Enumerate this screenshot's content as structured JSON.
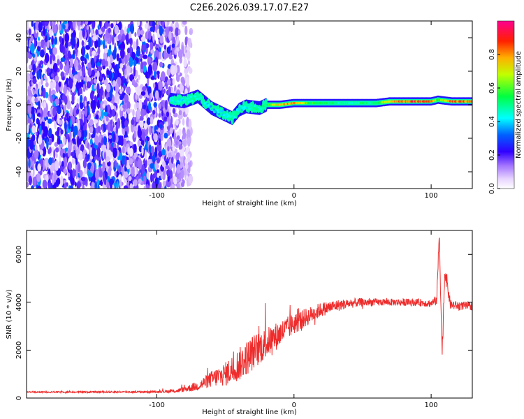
{
  "title": "C2E6.2026.039.17.07.E27",
  "chart_data": [
    {
      "type": "heatmap",
      "xlabel": "Height of straight line (km)",
      "ylabel": "Frequency (Hz)",
      "xlim": [
        -195,
        130
      ],
      "ylim": [
        -50,
        50
      ],
      "x_ticks": [
        -100,
        0,
        100
      ],
      "x_tick_labels": [
        "-100",
        "0",
        "100"
      ],
      "y_ticks": [
        -40,
        -20,
        0,
        20,
        40
      ],
      "y_tick_labels": [
        "-40",
        "-20",
        "0",
        "20",
        "40"
      ],
      "colorbar": {
        "label": "Normalized spectral amplitude",
        "range": [
          0,
          1
        ],
        "ticks": [
          0.0,
          0.2,
          0.4,
          0.6,
          0.8
        ],
        "tick_labels": [
          "0.0",
          "0.2",
          "0.4",
          "0.6",
          "0.8"
        ],
        "colormap": [
          "#ffffff",
          "#e6d2ff",
          "#7a2cf0",
          "#0000ff",
          "#00ffff",
          "#00ff00",
          "#ffff00",
          "#ff8000",
          "#ff0000",
          "#ff00a0"
        ]
      },
      "noise_region": {
        "x_from": -195,
        "x_to": -75,
        "amplitude": 0.25
      },
      "ridge": [
        {
          "x": -90,
          "freq": 3,
          "amp": 0.45
        },
        {
          "x": -80,
          "freq": 2,
          "amp": 0.45
        },
        {
          "x": -70,
          "freq": 5,
          "amp": 0.5
        },
        {
          "x": -60,
          "freq": -2,
          "amp": 0.4
        },
        {
          "x": -50,
          "freq": -6,
          "amp": 0.45
        },
        {
          "x": -45,
          "freq": -8,
          "amp": 0.5
        },
        {
          "x": -40,
          "freq": -3,
          "amp": 0.45
        },
        {
          "x": -35,
          "freq": -1,
          "amp": 0.45
        },
        {
          "x": -25,
          "freq": -2,
          "amp": 0.5
        },
        {
          "x": -20,
          "freq": 0,
          "amp": 0.55
        },
        {
          "x": -10,
          "freq": 0,
          "amp": 0.8
        },
        {
          "x": 0,
          "freq": 1,
          "amp": 0.85
        },
        {
          "x": 10,
          "freq": 1,
          "amp": 0.6
        },
        {
          "x": 20,
          "freq": 1,
          "amp": 0.55
        },
        {
          "x": 40,
          "freq": 1,
          "amp": 0.5
        },
        {
          "x": 60,
          "freq": 1,
          "amp": 0.55
        },
        {
          "x": 70,
          "freq": 2,
          "amp": 0.8
        },
        {
          "x": 90,
          "freq": 2,
          "amp": 0.9
        },
        {
          "x": 100,
          "freq": 2,
          "amp": 0.85
        },
        {
          "x": 105,
          "freq": 3,
          "amp": 0.6
        },
        {
          "x": 115,
          "freq": 2,
          "amp": 0.85
        },
        {
          "x": 130,
          "freq": 2,
          "amp": 0.85
        }
      ]
    },
    {
      "type": "line",
      "xlabel": "Height of straight line (km)",
      "ylabel": "SNR (10 * v/v)",
      "xlim": [
        -195,
        130
      ],
      "ylim": [
        0,
        7000
      ],
      "x_ticks": [
        -100,
        0,
        100
      ],
      "x_tick_labels": [
        "-100",
        "0",
        "100"
      ],
      "y_ticks": [
        0,
        2000,
        4000,
        6000
      ],
      "y_tick_labels": [
        "0",
        "2000",
        "4000",
        "6000"
      ],
      "color": "#ee2c2c",
      "x": [
        -195,
        -150,
        -100,
        -85,
        -70,
        -60,
        -50,
        -40,
        -30,
        -20,
        -10,
        0,
        10,
        20,
        30,
        40,
        50,
        60,
        70,
        80,
        90,
        100,
        104,
        106,
        108,
        110,
        114,
        120,
        130
      ],
      "y": [
        250,
        250,
        260,
        300,
        500,
        800,
        1000,
        1400,
        1900,
        2300,
        2700,
        3100,
        3400,
        3700,
        3850,
        3950,
        4000,
        4000,
        4000,
        4000,
        4000,
        3950,
        4100,
        6900,
        1800,
        5400,
        3900,
        3850,
        3850
      ],
      "noise": [
        30,
        30,
        40,
        80,
        200,
        350,
        500,
        700,
        750,
        650,
        550,
        450,
        380,
        300,
        250,
        200,
        180,
        150,
        150,
        150,
        150,
        160,
        200,
        400,
        400,
        400,
        200,
        180,
        180
      ]
    }
  ]
}
